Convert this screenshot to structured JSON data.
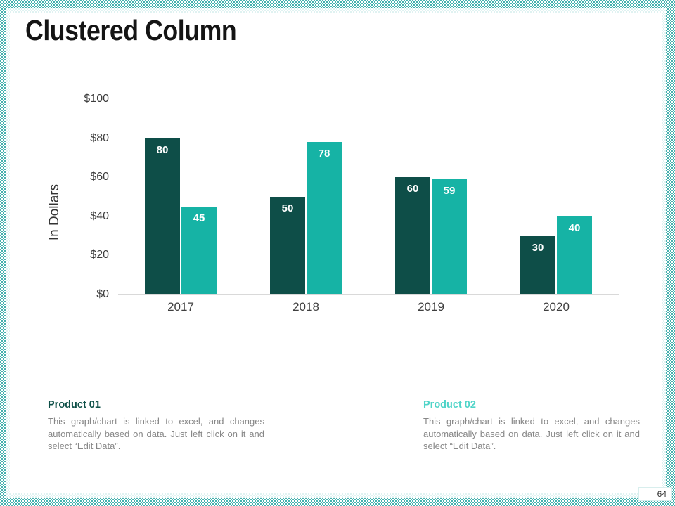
{
  "slide": {
    "title": "Clustered Column",
    "page_number": "64"
  },
  "chart_data": {
    "type": "bar",
    "title": "Clustered Column",
    "categories": [
      "2017",
      "2018",
      "2019",
      "2020"
    ],
    "series": [
      {
        "name": "Product 01",
        "color": "#0e4e48",
        "values": [
          80,
          50,
          60,
          30
        ]
      },
      {
        "name": "Product 02",
        "color": "#16b3a5",
        "values": [
          45,
          78,
          59,
          40
        ]
      }
    ],
    "ylabel": "In Dollars",
    "xlabel": "",
    "yticks": [
      "$0",
      "$20",
      "$40",
      "$60",
      "$80",
      "$100"
    ],
    "ylim": [
      0,
      100
    ],
    "grid": false,
    "legend_position": "none",
    "value_label_color": "#ffffff",
    "value_label_position": "inside-top"
  },
  "notes": {
    "product1": {
      "title": "Product 01",
      "description": "This graph/chart is linked to excel, and changes automatically based on data. Just left click on it and select “Edit Data”."
    },
    "product2": {
      "title": "Product 02",
      "description": "This graph/chart is linked to excel, and changes automatically based on data. Just left click on it and select “Edit Data”."
    }
  },
  "colors": {
    "series1": "#0e4e48",
    "series2": "#16b3a5",
    "product2_title": "#4fd4c8",
    "border_teal": "#44b1ae",
    "axis_line": "#d9d9d9",
    "body_text_gray": "#878787"
  }
}
